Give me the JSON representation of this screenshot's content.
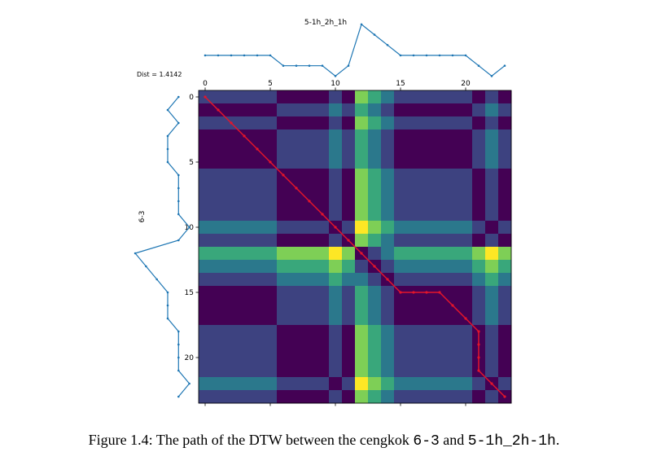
{
  "chart_data": {
    "type": "dtw-heatmap",
    "annotation": "Dist = 1.4142",
    "series": [
      {
        "name": "5-1h_2h_1h",
        "color": "#1f77b4",
        "values": [
          0,
          0,
          0,
          0,
          0,
          0,
          -1,
          -1,
          -1,
          -1,
          -2,
          -1,
          3,
          2,
          1,
          0,
          0,
          0,
          0,
          0,
          0,
          -1,
          -2,
          -1
        ]
      },
      {
        "name": "6-3",
        "color": "#1f77b4",
        "values": [
          -1,
          0,
          -1,
          0,
          0,
          0,
          -1,
          -1,
          -1,
          -1,
          -2,
          -1,
          3,
          2,
          1,
          0,
          0,
          0,
          -1,
          -1,
          -1,
          -1,
          -2,
          -1
        ]
      }
    ],
    "colormap": "viridis",
    "zlim": [
      0,
      5
    ],
    "matrix": [
      [
        1,
        1,
        1,
        1,
        1,
        1,
        0,
        0,
        0,
        0,
        1,
        0,
        4,
        3,
        2,
        1,
        1,
        1,
        1,
        1,
        1,
        0,
        1,
        0
      ],
      [
        0,
        0,
        0,
        0,
        0,
        0,
        1,
        1,
        1,
        1,
        2,
        1,
        3,
        2,
        1,
        0,
        0,
        0,
        0,
        0,
        0,
        1,
        2,
        1
      ],
      [
        1,
        1,
        1,
        1,
        1,
        1,
        0,
        0,
        0,
        0,
        1,
        0,
        4,
        3,
        2,
        1,
        1,
        1,
        1,
        1,
        1,
        0,
        1,
        0
      ],
      [
        0,
        0,
        0,
        0,
        0,
        0,
        1,
        1,
        1,
        1,
        2,
        1,
        3,
        2,
        1,
        0,
        0,
        0,
        0,
        0,
        0,
        1,
        2,
        1
      ],
      [
        0,
        0,
        0,
        0,
        0,
        0,
        1,
        1,
        1,
        1,
        2,
        1,
        3,
        2,
        1,
        0,
        0,
        0,
        0,
        0,
        0,
        1,
        2,
        1
      ],
      [
        0,
        0,
        0,
        0,
        0,
        0,
        1,
        1,
        1,
        1,
        2,
        1,
        3,
        2,
        1,
        0,
        0,
        0,
        0,
        0,
        0,
        1,
        2,
        1
      ],
      [
        1,
        1,
        1,
        1,
        1,
        1,
        0,
        0,
        0,
        0,
        1,
        0,
        4,
        3,
        2,
        1,
        1,
        1,
        1,
        1,
        1,
        0,
        1,
        0
      ],
      [
        1,
        1,
        1,
        1,
        1,
        1,
        0,
        0,
        0,
        0,
        1,
        0,
        4,
        3,
        2,
        1,
        1,
        1,
        1,
        1,
        1,
        0,
        1,
        0
      ],
      [
        1,
        1,
        1,
        1,
        1,
        1,
        0,
        0,
        0,
        0,
        1,
        0,
        4,
        3,
        2,
        1,
        1,
        1,
        1,
        1,
        1,
        0,
        1,
        0
      ],
      [
        1,
        1,
        1,
        1,
        1,
        1,
        0,
        0,
        0,
        0,
        1,
        0,
        4,
        3,
        2,
        1,
        1,
        1,
        1,
        1,
        1,
        0,
        1,
        0
      ],
      [
        2,
        2,
        2,
        2,
        2,
        2,
        1,
        1,
        1,
        1,
        0,
        1,
        5,
        4,
        3,
        2,
        2,
        2,
        2,
        2,
        2,
        1,
        0,
        1
      ],
      [
        1,
        1,
        1,
        1,
        1,
        1,
        0,
        0,
        0,
        0,
        1,
        0,
        4,
        3,
        2,
        1,
        1,
        1,
        1,
        1,
        1,
        0,
        1,
        0
      ],
      [
        3,
        3,
        3,
        3,
        3,
        3,
        4,
        4,
        4,
        4,
        5,
        4,
        0,
        1,
        2,
        3,
        3,
        3,
        3,
        3,
        3,
        4,
        5,
        4
      ],
      [
        2,
        2,
        2,
        2,
        2,
        2,
        3,
        3,
        3,
        3,
        4,
        3,
        1,
        0,
        1,
        2,
        2,
        2,
        2,
        2,
        2,
        3,
        4,
        3
      ],
      [
        1,
        1,
        1,
        1,
        1,
        1,
        2,
        2,
        2,
        2,
        3,
        2,
        2,
        1,
        0,
        1,
        1,
        1,
        1,
        1,
        1,
        2,
        3,
        2
      ],
      [
        0,
        0,
        0,
        0,
        0,
        0,
        1,
        1,
        1,
        1,
        2,
        1,
        3,
        2,
        1,
        0,
        0,
        0,
        0,
        0,
        0,
        1,
        2,
        1
      ],
      [
        0,
        0,
        0,
        0,
        0,
        0,
        1,
        1,
        1,
        1,
        2,
        1,
        3,
        2,
        1,
        0,
        0,
        0,
        0,
        0,
        0,
        1,
        2,
        1
      ],
      [
        0,
        0,
        0,
        0,
        0,
        0,
        1,
        1,
        1,
        1,
        2,
        1,
        3,
        2,
        1,
        0,
        0,
        0,
        0,
        0,
        0,
        1,
        2,
        1
      ],
      [
        1,
        1,
        1,
        1,
        1,
        1,
        0,
        0,
        0,
        0,
        1,
        0,
        4,
        3,
        2,
        1,
        1,
        1,
        1,
        1,
        1,
        0,
        1,
        0
      ],
      [
        1,
        1,
        1,
        1,
        1,
        1,
        0,
        0,
        0,
        0,
        1,
        0,
        4,
        3,
        2,
        1,
        1,
        1,
        1,
        1,
        1,
        0,
        1,
        0
      ],
      [
        1,
        1,
        1,
        1,
        1,
        1,
        0,
        0,
        0,
        0,
        1,
        0,
        4,
        3,
        2,
        1,
        1,
        1,
        1,
        1,
        1,
        0,
        1,
        0
      ],
      [
        1,
        1,
        1,
        1,
        1,
        1,
        0,
        0,
        0,
        0,
        1,
        0,
        4,
        3,
        2,
        1,
        1,
        1,
        1,
        1,
        1,
        0,
        1,
        0
      ],
      [
        2,
        2,
        2,
        2,
        2,
        2,
        1,
        1,
        1,
        1,
        0,
        1,
        5,
        4,
        3,
        2,
        2,
        2,
        2,
        2,
        2,
        1,
        0,
        1
      ],
      [
        1,
        1,
        1,
        1,
        1,
        1,
        0,
        0,
        0,
        0,
        1,
        0,
        4,
        3,
        2,
        1,
        1,
        1,
        1,
        1,
        1,
        0,
        1,
        0
      ]
    ],
    "path_color": "#e3152b",
    "path": [
      [
        0,
        0
      ],
      [
        1,
        1
      ],
      [
        2,
        2
      ],
      [
        3,
        3
      ],
      [
        4,
        4
      ],
      [
        5,
        5
      ],
      [
        6,
        6
      ],
      [
        7,
        7
      ],
      [
        8,
        8
      ],
      [
        9,
        9
      ],
      [
        10,
        10
      ],
      [
        11,
        11
      ],
      [
        12,
        12
      ],
      [
        13,
        13
      ],
      [
        14,
        14
      ],
      [
        15,
        15
      ],
      [
        15,
        16
      ],
      [
        15,
        17
      ],
      [
        15,
        18
      ],
      [
        16,
        19
      ],
      [
        17,
        20
      ],
      [
        18,
        21
      ],
      [
        19,
        21
      ],
      [
        20,
        21
      ],
      [
        21,
        21
      ],
      [
        22,
        22
      ],
      [
        23,
        23
      ]
    ],
    "xlim": [
      -0.5,
      23.5
    ],
    "ylim": [
      -0.5,
      23.5
    ],
    "xticks": [
      0,
      5,
      10,
      15,
      20
    ],
    "yticks": [
      0,
      5,
      10,
      15,
      20
    ]
  },
  "caption": {
    "parts": [
      "Figure 1.4: The path of the DTW between the cengkok ",
      "6-3",
      " and ",
      "5-1h_2h-1h",
      "."
    ]
  }
}
